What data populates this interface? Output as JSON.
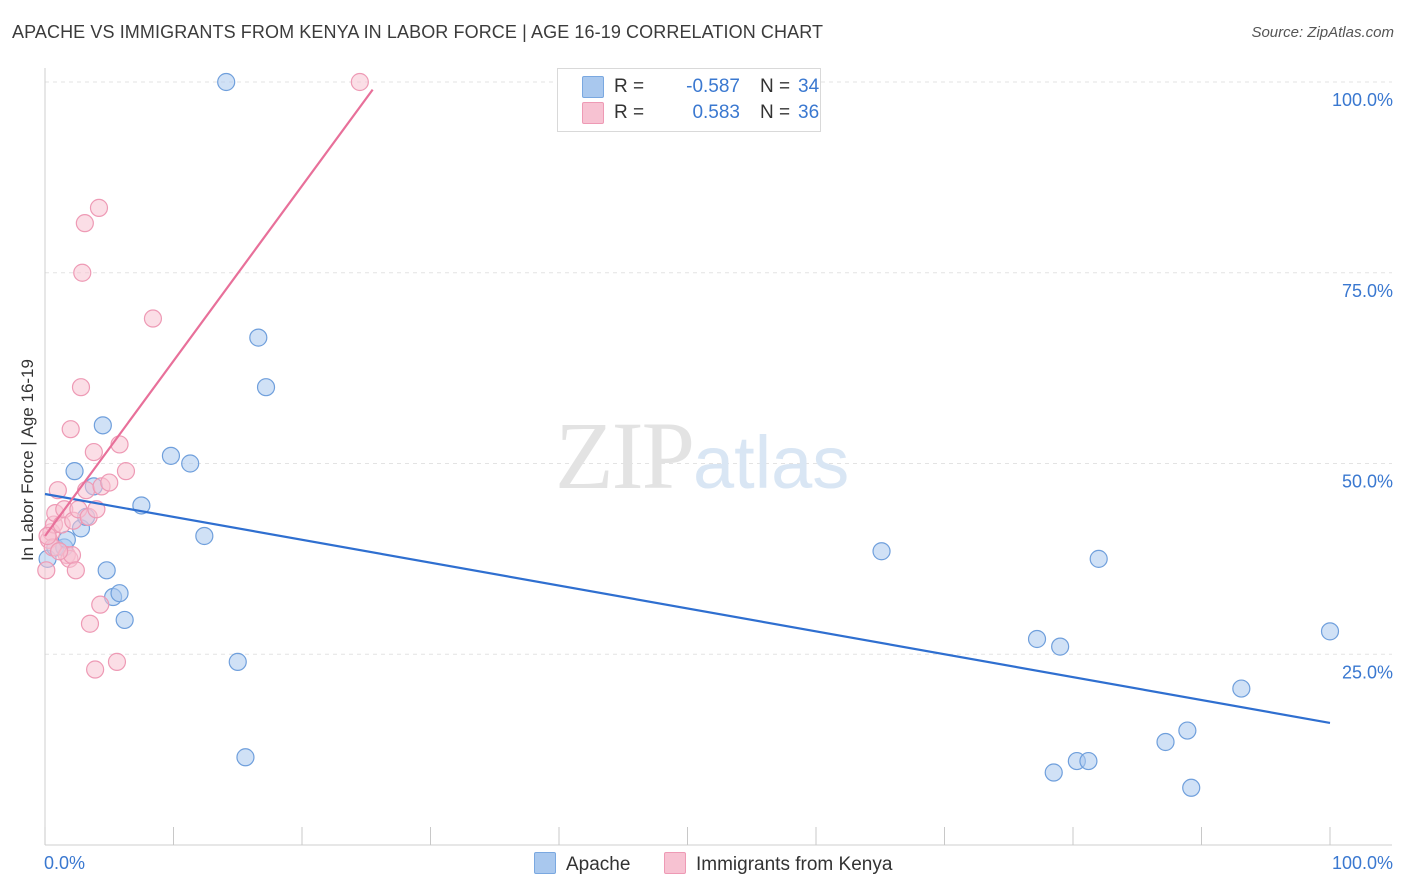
{
  "title": "APACHE VS IMMIGRANTS FROM KENYA IN LABOR FORCE | AGE 16-19 CORRELATION CHART",
  "source": "Source: ZipAtlas.com",
  "watermark": {
    "zip": "ZIP",
    "atlas": "atlas"
  },
  "legend": {
    "rows": [
      {
        "r_label": "R =",
        "r_value": "-0.587",
        "n_label": "N =",
        "n_value": "34",
        "color": "#a9c8ee",
        "border": "#7aa8e0"
      },
      {
        "r_label": "R =",
        "r_value": "0.583",
        "n_label": "N =",
        "n_value": "36",
        "color": "#f7c2d2",
        "border": "#ee9ab5"
      }
    ]
  },
  "bottom_legend": [
    {
      "label": "Apache",
      "color": "#a9c8ee",
      "border": "#7aa8e0"
    },
    {
      "label": "Immigrants from Kenya",
      "color": "#f7c2d2",
      "border": "#ee9ab5"
    }
  ],
  "chart_data": {
    "type": "scatter",
    "title": "APACHE VS IMMIGRANTS FROM KENYA IN LABOR FORCE | AGE 16-19 CORRELATION CHART",
    "xlabel": "",
    "ylabel": "In Labor Force | Age 16-19",
    "xlim": [
      0,
      100
    ],
    "ylim": [
      0,
      100
    ],
    "x_tick_labels": [
      "0.0%",
      "100.0%"
    ],
    "y_ticks": [
      25,
      50,
      75,
      100
    ],
    "y_tick_labels": [
      "25.0%",
      "50.0%",
      "75.0%",
      "100.0%"
    ],
    "grid": true,
    "series": [
      {
        "name": "Apache",
        "color": "#a9c8ee",
        "stroke": "#6f9fdc",
        "line_color": "#2f6fd0",
        "trend": [
          [
            0,
            46
          ],
          [
            100,
            16
          ]
        ],
        "points": [
          [
            0.2,
            37.5
          ],
          [
            0.8,
            39
          ],
          [
            1.5,
            39
          ],
          [
            1.7,
            40
          ],
          [
            2.3,
            49
          ],
          [
            2.8,
            41.5
          ],
          [
            3.2,
            43
          ],
          [
            3.8,
            47
          ],
          [
            4.5,
            55
          ],
          [
            4.8,
            36
          ],
          [
            5.3,
            32.5
          ],
          [
            5.8,
            33
          ],
          [
            6.2,
            29.5
          ],
          [
            7.5,
            44.5
          ],
          [
            9.8,
            51
          ],
          [
            11.3,
            50
          ],
          [
            12.4,
            40.5
          ],
          [
            14.1,
            100
          ],
          [
            15,
            24
          ],
          [
            15.6,
            11.5
          ],
          [
            16.6,
            66.5
          ],
          [
            17.2,
            60
          ],
          [
            65.1,
            38.5
          ],
          [
            77.2,
            27
          ],
          [
            78.5,
            9.5
          ],
          [
            79,
            26
          ],
          [
            80.3,
            11
          ],
          [
            81.2,
            11
          ],
          [
            82,
            37.5
          ],
          [
            87.2,
            13.5
          ],
          [
            88.9,
            15
          ],
          [
            89.2,
            7.5
          ],
          [
            93.1,
            20.5
          ],
          [
            100,
            28
          ]
        ]
      },
      {
        "name": "Immigrants from Kenya",
        "color": "#f7c2d2",
        "stroke": "#ee9ab5",
        "line_color": "#e8709a",
        "trend": [
          [
            0,
            40.5
          ],
          [
            25.5,
            99
          ]
        ],
        "points": [
          [
            0.1,
            36
          ],
          [
            0.3,
            40
          ],
          [
            0.5,
            41
          ],
          [
            0.6,
            39
          ],
          [
            0.7,
            42
          ],
          [
            0.8,
            43.5
          ],
          [
            1,
            46.5
          ],
          [
            1.3,
            42
          ],
          [
            1.5,
            44
          ],
          [
            1.7,
            38
          ],
          [
            1.9,
            37.5
          ],
          [
            2.1,
            38
          ],
          [
            2,
            54.5
          ],
          [
            2.2,
            42.5
          ],
          [
            2.4,
            36
          ],
          [
            2.6,
            44
          ],
          [
            2.8,
            60
          ],
          [
            2.9,
            75
          ],
          [
            3.1,
            81.5
          ],
          [
            3.2,
            46.5
          ],
          [
            3.4,
            43
          ],
          [
            3.5,
            29
          ],
          [
            3.8,
            51.5
          ],
          [
            3.9,
            23
          ],
          [
            4,
            44
          ],
          [
            4.2,
            83.5
          ],
          [
            4.3,
            31.5
          ],
          [
            4.4,
            47
          ],
          [
            5,
            47.5
          ],
          [
            5.6,
            24
          ],
          [
            5.8,
            52.5
          ],
          [
            6.3,
            49
          ],
          [
            8.4,
            69
          ],
          [
            24.5,
            100
          ],
          [
            0.2,
            40.5
          ],
          [
            1.1,
            38.5
          ]
        ]
      }
    ]
  }
}
